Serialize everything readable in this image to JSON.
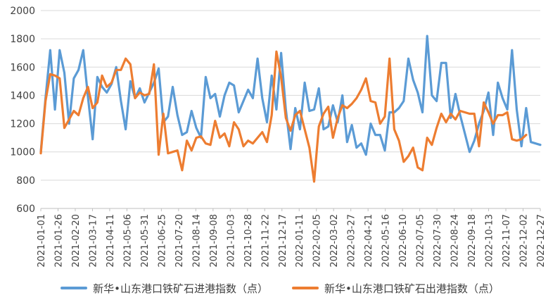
{
  "chart_data": {
    "type": "line",
    "title": "",
    "xlabel": "",
    "ylabel": "",
    "ylim": [
      600,
      2000
    ],
    "yticks": [
      600,
      800,
      1000,
      1200,
      1400,
      1600,
      1800,
      2000
    ],
    "grid": "horizontal",
    "legend_position": "bottom",
    "x_tick_labels": [
      "2021-01-01",
      "2021-01-26",
      "2021-02-20",
      "2021-03-17",
      "2021-04-11",
      "2021-05-06",
      "2021-05-31",
      "2021-06-25",
      "2021-07-20",
      "2021-08-14",
      "2021-09-08",
      "2021-10-03",
      "2021-10-28",
      "2021-11-22",
      "2021-12-17",
      "2022-01-11",
      "2022-02-05",
      "2022-03-02",
      "2022-03-27",
      "2022-04-21",
      "2022-05-16",
      "2022-06-10",
      "2022-07-05",
      "2022-07-30",
      "2022-08-24",
      "2022-09-18",
      "2022-10-13",
      "2022-11-07",
      "2022-12-02",
      "2022-12-27"
    ],
    "series": [
      {
        "name": "新华•山东港口铁矿石进港指数（点）",
        "color": "#5B9BD5",
        "values": [
          1000,
          1380,
          1720,
          1300,
          1720,
          1560,
          1200,
          1520,
          1580,
          1720,
          1390,
          1090,
          1530,
          1460,
          1420,
          1480,
          1600,
          1360,
          1160,
          1500,
          1380,
          1450,
          1350,
          1420,
          1490,
          1590,
          1210,
          1250,
          1460,
          1260,
          1120,
          1140,
          1290,
          1170,
          1100,
          1530,
          1380,
          1410,
          1250,
          1400,
          1490,
          1470,
          1280,
          1360,
          1440,
          1380,
          1660,
          1380,
          1210,
          1540,
          1300,
          1700,
          1300,
          1020,
          1310,
          1160,
          1490,
          1290,
          1300,
          1450,
          1160,
          1180,
          1330,
          1210,
          1400,
          1070,
          1190,
          1030,
          1060,
          980,
          1200,
          1120,
          1120,
          1010,
          1280,
          1280,
          1310,
          1360,
          1660,
          1510,
          1420,
          1280,
          1820,
          1400,
          1360,
          1630,
          1630,
          1240,
          1410,
          1260,
          1130,
          1000,
          1080,
          1200,
          1290,
          1420,
          1120,
          1490,
          1380,
          1300,
          1720,
          1300,
          1040,
          1310,
          1070,
          1060,
          1050
        ],
        "x": [
          0,
          1,
          2,
          3,
          4,
          5,
          6,
          7,
          8,
          9,
          10,
          11,
          12,
          13,
          14,
          15,
          16,
          17,
          18,
          19,
          20,
          21,
          22,
          23,
          24,
          25,
          26,
          27,
          28,
          29,
          30,
          31,
          32,
          33,
          34,
          35,
          36,
          37,
          38,
          39,
          40,
          41,
          42,
          43,
          44,
          45,
          46,
          47,
          48,
          49,
          50,
          51,
          52,
          53,
          54,
          55,
          56,
          57,
          58,
          59,
          60,
          61,
          62,
          63,
          64,
          65,
          66,
          67,
          68,
          69,
          70,
          71,
          72,
          73,
          74,
          75,
          76,
          77,
          78,
          79,
          80,
          81,
          82,
          83,
          84,
          85,
          86,
          87,
          88,
          89,
          90,
          91,
          92,
          93,
          94,
          95,
          96,
          97,
          98,
          99,
          100,
          101,
          102,
          103,
          104,
          105,
          106
        ]
      },
      {
        "name": "新华•山东港口铁矿石出港指数（点）",
        "color": "#ED7D31",
        "values": [
          990,
          1360,
          1550,
          1540,
          1520,
          1170,
          1230,
          1290,
          1260,
          1380,
          1460,
          1310,
          1350,
          1540,
          1460,
          1490,
          1580,
          1580,
          1660,
          1620,
          1380,
          1420,
          1400,
          1410,
          1620,
          980,
          1270,
          990,
          1000,
          1010,
          870,
          1080,
          1010,
          1100,
          1110,
          1060,
          1050,
          1220,
          1100,
          1130,
          1040,
          1210,
          1160,
          1040,
          1080,
          1060,
          1100,
          1140,
          1070,
          1260,
          1710,
          1530,
          1240,
          1150,
          1260,
          1290,
          1160,
          1030,
          790,
          1180,
          1270,
          1320,
          1100,
          1240,
          1330,
          1310,
          1340,
          1380,
          1440,
          1520,
          1360,
          1350,
          1200,
          1250,
          1660,
          1160,
          1080,
          930,
          970,
          1030,
          890,
          870,
          1100,
          1050,
          1170,
          1270,
          1210,
          1270,
          1230,
          1290,
          1280,
          1270,
          1270,
          1040,
          1350,
          1280,
          1200,
          1260,
          1260,
          1280,
          1090,
          1080,
          1090,
          1120
        ],
        "x": [
          0,
          1,
          2,
          3,
          4,
          5,
          6,
          7,
          8,
          9,
          10,
          11,
          12,
          13,
          14,
          15,
          16,
          17,
          18,
          19,
          20,
          21,
          22,
          23,
          24,
          25,
          26,
          27,
          28,
          29,
          30,
          31,
          32,
          33,
          34,
          35,
          36,
          37,
          38,
          39,
          40,
          41,
          42,
          43,
          44,
          45,
          46,
          47,
          48,
          49,
          50,
          51,
          52,
          53,
          54,
          55,
          56,
          57,
          58,
          59,
          60,
          61,
          62,
          63,
          64,
          65,
          66,
          67,
          68,
          69,
          70,
          71,
          72,
          73,
          74,
          75,
          76,
          77,
          78,
          79,
          80,
          81,
          82,
          83,
          84,
          85,
          86,
          87,
          88,
          89,
          90,
          91,
          92,
          93,
          94,
          95,
          96,
          97,
          98,
          99,
          100,
          101,
          102,
          103
        ]
      }
    ]
  }
}
